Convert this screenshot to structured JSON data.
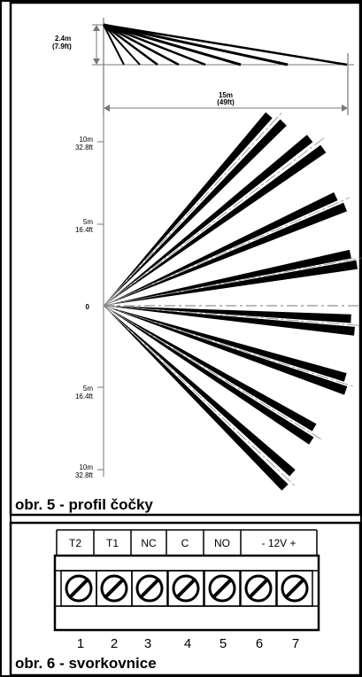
{
  "diagram": {
    "side_view": {
      "height_label": "2.4m",
      "height_label_ft": "(7.9ft)",
      "range_label": "15m",
      "range_label_ft": "(49ft)"
    },
    "top_view": {
      "ticks": [
        {
          "m": "10m",
          "ft": "32.8ft"
        },
        {
          "m": "5m",
          "ft": "16.4ft"
        },
        {
          "m": "0",
          "ft": ""
        },
        {
          "m": "5m",
          "ft": "16.4ft"
        },
        {
          "m": "10m",
          "ft": "32.8ft"
        }
      ],
      "caption": "obr. 5 - profil čočky"
    },
    "terminal_block": {
      "labels": [
        "T2",
        "T1",
        "NC",
        "C",
        "NO",
        "- 12V +"
      ],
      "numbers": [
        "1",
        "2",
        "3",
        "4",
        "5",
        "6",
        "7"
      ],
      "caption": "obr. 6 - svorkovnice"
    }
  }
}
